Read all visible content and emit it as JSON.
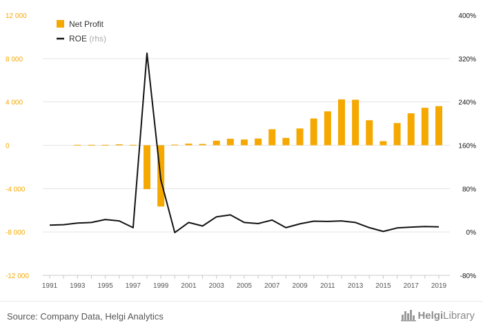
{
  "chart_data": {
    "type": "bar+line",
    "x": [
      1991,
      1992,
      1993,
      1994,
      1995,
      1996,
      1997,
      1998,
      1999,
      2000,
      2001,
      2002,
      2003,
      2004,
      2005,
      2006,
      2007,
      2008,
      2009,
      2010,
      2011,
      2012,
      2013,
      2014,
      2015,
      2016,
      2017,
      2018,
      2019
    ],
    "x_tick_labels": [
      "1991",
      "1993",
      "1995",
      "1997",
      "1999",
      "2001",
      "2003",
      "2005",
      "2007",
      "2009",
      "2011",
      "2013",
      "2015",
      "2017",
      "2019"
    ],
    "series": [
      {
        "name": "Net Profit",
        "type": "bar",
        "axis": "left",
        "color": "#f5a800",
        "values": [
          0,
          0,
          40,
          40,
          40,
          90,
          40,
          -4050,
          -5650,
          60,
          150,
          120,
          420,
          600,
          530,
          620,
          1480,
          680,
          1550,
          2470,
          3130,
          4230,
          4200,
          2310,
          380,
          2050,
          2950,
          3460,
          3610
        ]
      },
      {
        "name": "ROE",
        "name_suffix": "(rhs)",
        "type": "line",
        "axis": "right",
        "color": "#111111",
        "values": [
          12.5,
          13.5,
          16.5,
          17.5,
          23,
          20.5,
          8,
          330,
          96,
          -1,
          17.5,
          11,
          28,
          31.5,
          17.5,
          15.5,
          22,
          8,
          15,
          20,
          19.5,
          20.5,
          17.5,
          8,
          1,
          7.5,
          9,
          10,
          9.5
        ]
      }
    ],
    "left_axis": {
      "min": -12000,
      "max": 12000,
      "step": 4000,
      "tick_labels": [
        "12 000",
        "8 000",
        "4 000",
        "0",
        "-4 000",
        "-8 000",
        "-12 000"
      ],
      "color": "#f5a800"
    },
    "right_axis": {
      "min": -80,
      "max": 400,
      "step": 80,
      "tick_labels": [
        "400%",
        "320%",
        "240%",
        "160%",
        "80%",
        "0%",
        "-80%"
      ],
      "color": "#111111"
    },
    "grid": true,
    "legend_position": "top-left"
  },
  "legend": {
    "net_profit": "Net Profit",
    "roe": "ROE",
    "roe_suffix": "(rhs)"
  },
  "footer": {
    "source": "Source: Company Data, Helgi Analytics",
    "logo_a": "Helgi",
    "logo_b": "Library"
  }
}
